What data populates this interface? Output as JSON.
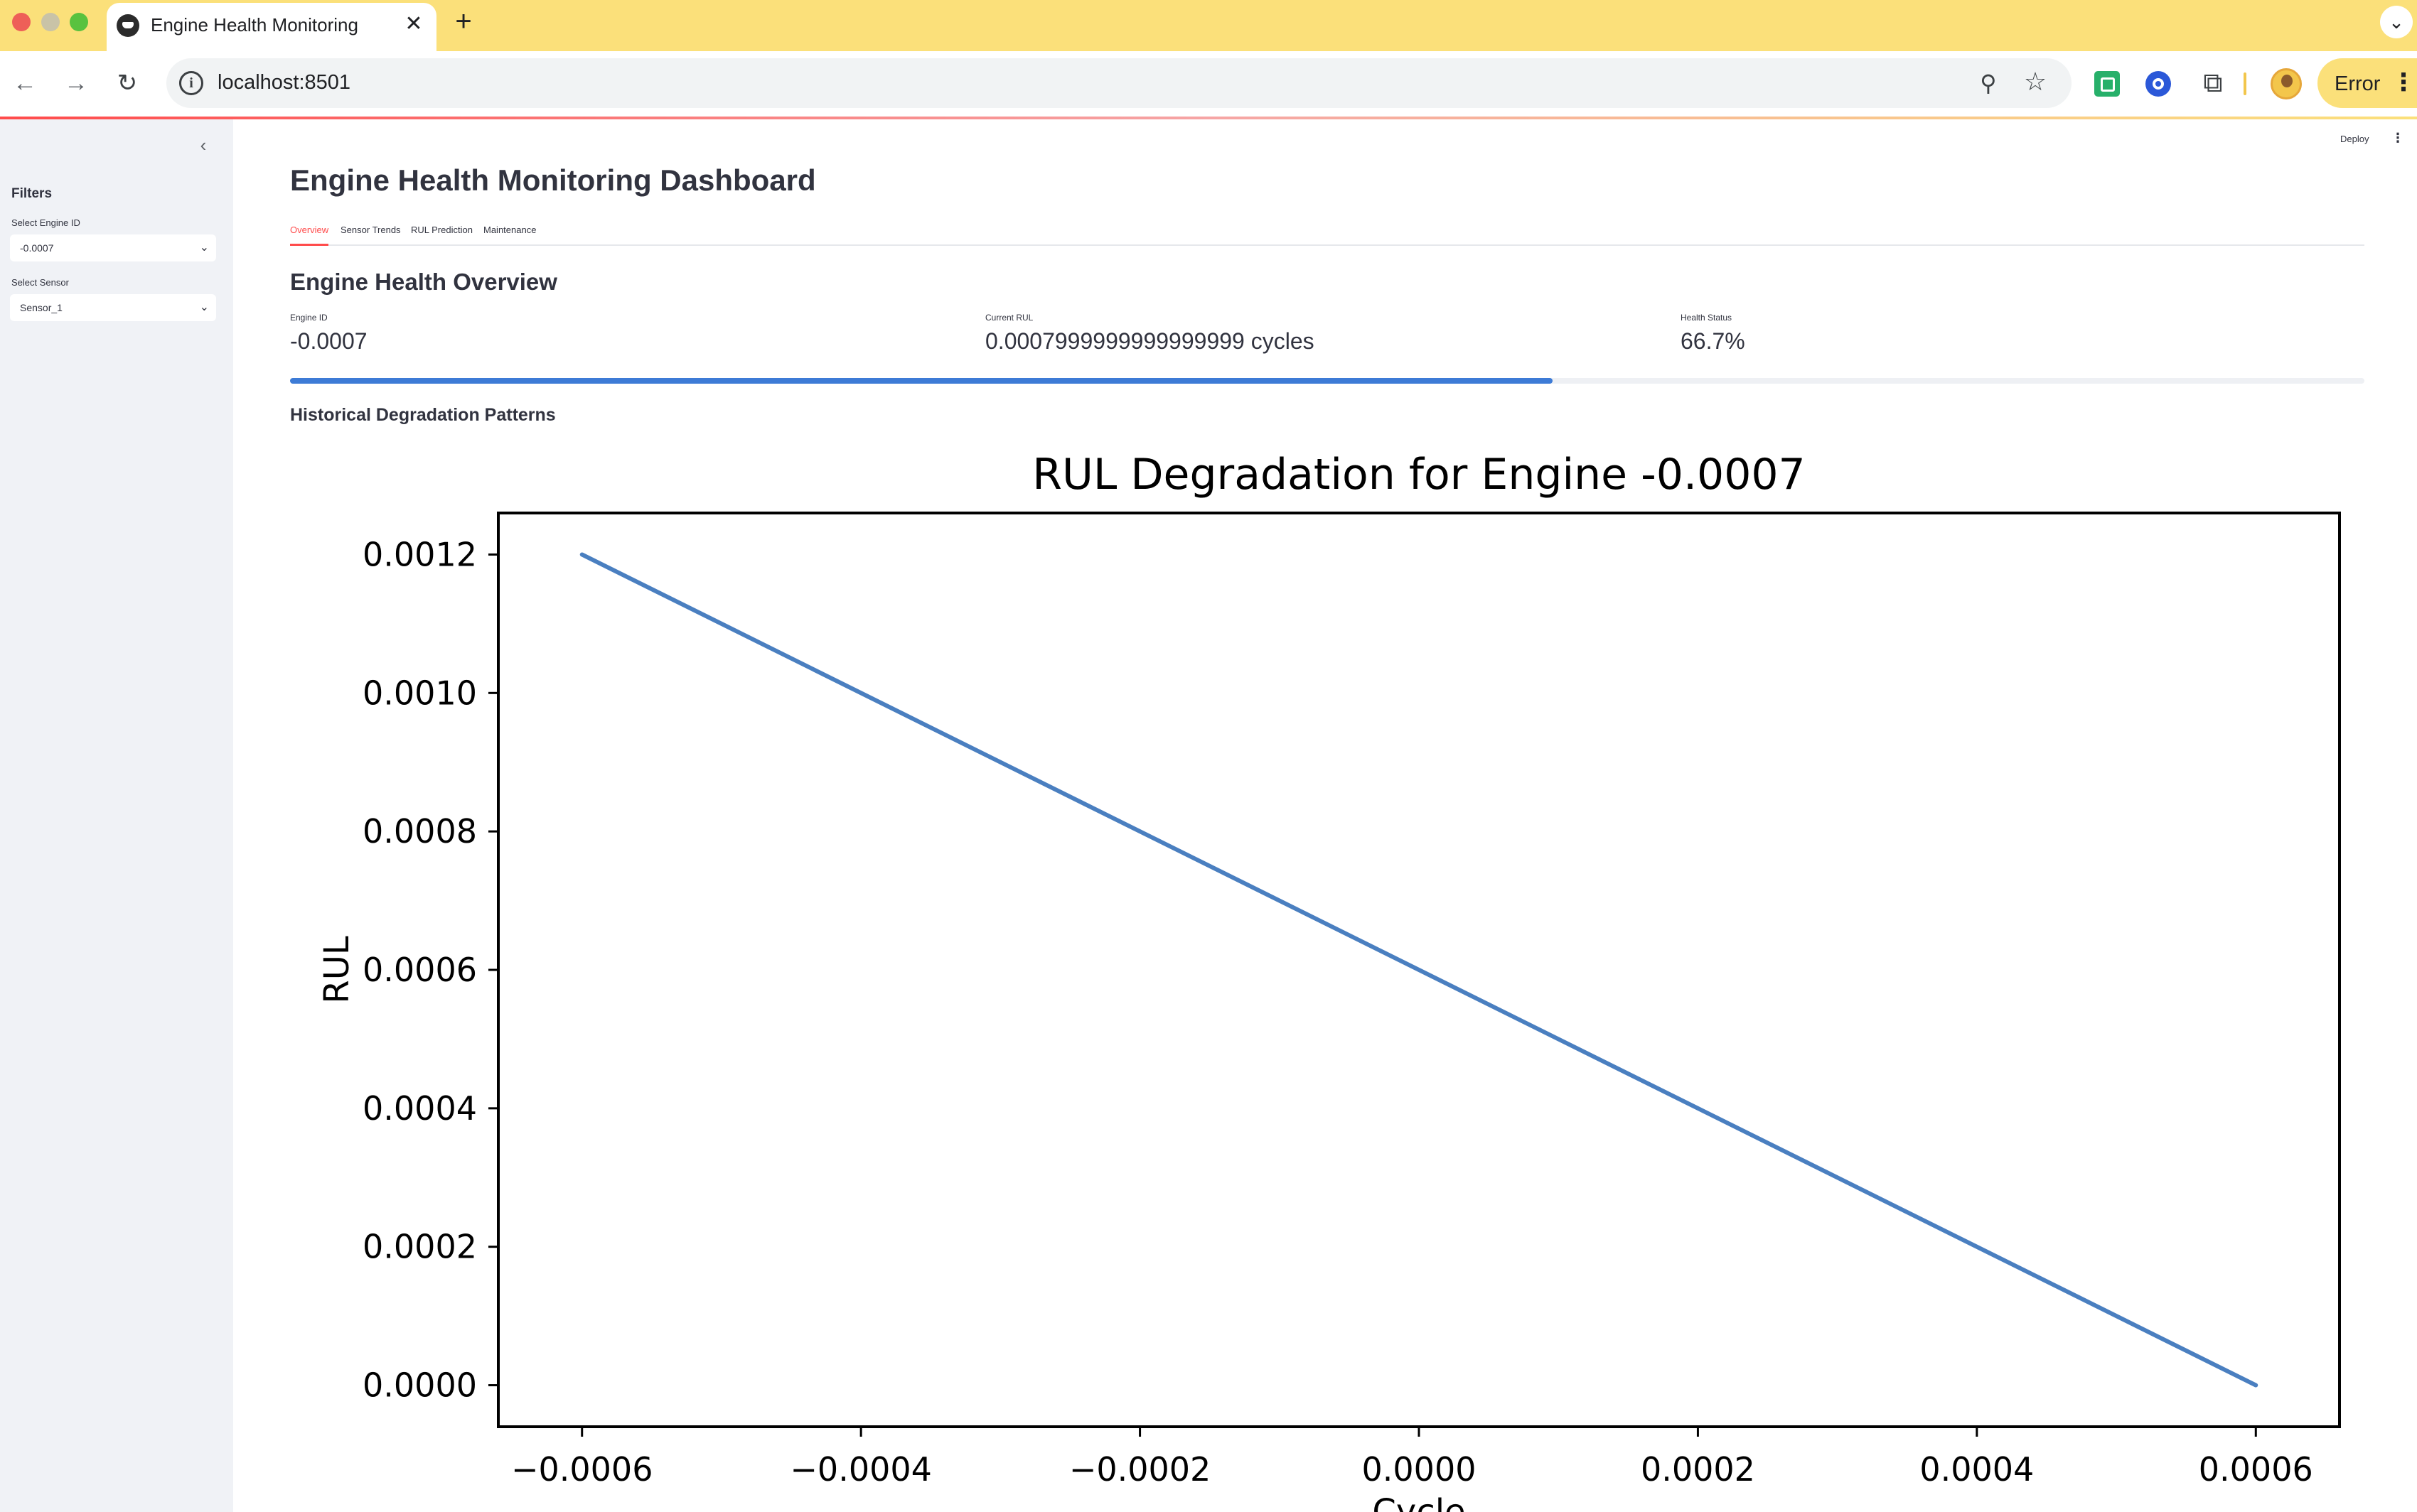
{
  "browser": {
    "tab_title": "Engine Health Monitoring",
    "tab_close": "✕",
    "new_tab": "+",
    "tab_menu": "⌄",
    "url": "localhost:8501",
    "profile_status": "Error"
  },
  "sidebar": {
    "collapse_icon": "‹",
    "title": "Filters",
    "engine_select": {
      "label": "Select Engine ID",
      "value": "-0.0007"
    },
    "sensor_select": {
      "label": "Select Sensor",
      "value": "Sensor_1"
    }
  },
  "header": {
    "deploy_label": "Deploy"
  },
  "page": {
    "title": "Engine Health Monitoring Dashboard",
    "tabs": [
      {
        "label": "Overview",
        "active": true
      },
      {
        "label": "Sensor Trends"
      },
      {
        "label": "RUL Prediction"
      },
      {
        "label": "Maintenance"
      }
    ],
    "section_title": "Engine Health Overview",
    "metrics": [
      {
        "label": "Engine ID",
        "value": "-0.0007"
      },
      {
        "label": "Current RUL",
        "value": "0.0007999999999999999 cycles"
      },
      {
        "label": "Health Status",
        "value": "66.7%"
      }
    ],
    "health_progress": 0.6087,
    "subheading": "Historical Degradation Patterns"
  },
  "colors": {
    "accent": "#ff4b4b",
    "progress": "#3d7bd6",
    "line": "#4a7fc0",
    "sidebar_bg": "#f0f2f6"
  },
  "chart_data": {
    "type": "line",
    "title": "RUL Degradation for Engine -0.0007",
    "xlabel": "Cycle",
    "ylabel": "RUL",
    "x": [
      -0.0006,
      0.0006
    ],
    "series": [
      {
        "values": [
          0.0012,
          0.0
        ]
      }
    ],
    "xlim": [
      -0.00066,
      0.00066
    ],
    "ylim": [
      -6e-05,
      0.00126
    ],
    "xticks": [
      -0.0006,
      -0.0004,
      -0.0002,
      0.0,
      0.0002,
      0.0004,
      0.0006
    ],
    "xtick_labels": [
      "−0.0006",
      "−0.0004",
      "−0.0002",
      "0.0000",
      "0.0002",
      "0.0004",
      "0.0006"
    ],
    "yticks": [
      0.0,
      0.0002,
      0.0004,
      0.0006,
      0.0008,
      0.001,
      0.0012
    ],
    "ytick_labels": [
      "0.0000",
      "0.0002",
      "0.0004",
      "0.0006",
      "0.0008",
      "0.0010",
      "0.0012"
    ],
    "grid": false
  }
}
